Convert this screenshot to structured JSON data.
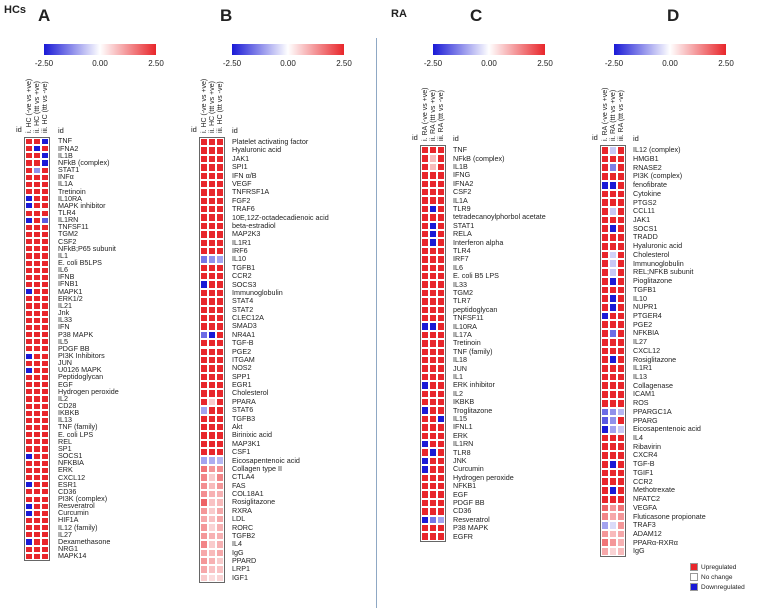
{
  "groups": {
    "hcs": "HCs",
    "ra": "RA"
  },
  "legend": {
    "up": "Upregulated",
    "nc": "No change",
    "down": "Downregulated"
  },
  "colors": {
    "up": "#e8262b",
    "down": "#1a1ad6",
    "nc": "#ffffff"
  },
  "chart_data": [
    {
      "type": "heatmap",
      "panel": "A",
      "colorbar": {
        "min": -2.5,
        "mid": 0.0,
        "max": 2.5,
        "min_label": "-2.50",
        "mid_label": "0.00",
        "max_label": "2.50"
      },
      "columns": [
        "i. HC (-ve vs +ve)",
        "ii. HC (ttt vs +ve)",
        "iii. HC (ttt vs -ve)"
      ],
      "id_label": "id",
      "rows": [
        "TNF",
        "IFNA2",
        "IL1B",
        "NFkB (complex)",
        "STAT1",
        "INFα",
        "IL1A",
        "Tretinoin",
        "IL10RA",
        "MAPK inhibitor",
        "TLR4",
        "IL1RN",
        "TNFSF11",
        "TGM2",
        "CSF2",
        "NFkB;P65 subunit",
        "IL1",
        "E. coli B5LPS",
        "IL6",
        "IFNB",
        "IFNB1",
        "MAPK1",
        "ERK1/2",
        "IL21",
        "Jnk",
        "IL33",
        "IFN",
        "P38 MAPK",
        "IL5",
        "PDGF BB",
        "PI3K Inhibitors",
        "JUN",
        "U0126 MAPK",
        "Peptidoglycan",
        "EGF",
        "Hydrogen peroxide",
        "IL2",
        "CD28",
        "IKBKB",
        "IL13",
        "TNF (family)",
        "E. coli LPS",
        "REL",
        "SP1",
        "SOCS1",
        "NFKBIA",
        "ERK",
        "CXCL12",
        "ESR1",
        "CD36",
        "PI3K (complex)",
        "Resveratrol",
        "Curcumin",
        "HIF1A",
        "IL12 (family)",
        "IL27",
        "Dexamethasone",
        "NRG1",
        "MAPK14"
      ],
      "values": [
        [
          2.5,
          2.5,
          -2.5
        ],
        [
          2.5,
          -2.5,
          2.5
        ],
        [
          2.5,
          2.5,
          -2.5
        ],
        [
          2.5,
          2.5,
          -2.5
        ],
        [
          2.5,
          -1.2,
          2.5
        ],
        [
          2.5,
          2.5,
          2.5
        ],
        [
          2.5,
          2.5,
          2.5
        ],
        [
          2.5,
          2.5,
          2.5
        ],
        [
          -2.5,
          2.5,
          2.5
        ],
        [
          -2.5,
          2.5,
          2.5
        ],
        [
          2.5,
          2.5,
          2.5
        ],
        [
          -2.5,
          2.5,
          -1.8
        ],
        [
          2.5,
          2.5,
          2.5
        ],
        [
          2.5,
          2.5,
          2.5
        ],
        [
          2.5,
          2.5,
          2.5
        ],
        [
          2.5,
          2.5,
          2.5
        ],
        [
          2.5,
          2.5,
          2.5
        ],
        [
          2.5,
          2.5,
          2.5
        ],
        [
          2.5,
          2.5,
          2.5
        ],
        [
          2.5,
          2.5,
          2.5
        ],
        [
          2.5,
          2.5,
          2.5
        ],
        [
          -2.5,
          2.5,
          2.5
        ],
        [
          2.5,
          2.5,
          2.5
        ],
        [
          2.5,
          2.5,
          2.5
        ],
        [
          2.5,
          2.5,
          2.5
        ],
        [
          2.5,
          2.5,
          2.5
        ],
        [
          2.5,
          2.5,
          2.5
        ],
        [
          2.5,
          2.5,
          2.5
        ],
        [
          2.5,
          2.5,
          2.5
        ],
        [
          2.5,
          2.5,
          2.5
        ],
        [
          -2.5,
          2.5,
          2.5
        ],
        [
          2.5,
          2.5,
          2.5
        ],
        [
          -2.5,
          2.5,
          2.5
        ],
        [
          2.5,
          2.5,
          2.5
        ],
        [
          2.5,
          2.5,
          2.5
        ],
        [
          2.5,
          2.5,
          2.5
        ],
        [
          2.5,
          2.5,
          2.5
        ],
        [
          2.5,
          2.5,
          2.5
        ],
        [
          2.5,
          2.5,
          2.5
        ],
        [
          2.5,
          2.5,
          2.5
        ],
        [
          2.5,
          2.5,
          2.5
        ],
        [
          2.5,
          2.5,
          2.5
        ],
        [
          2.5,
          2.5,
          2.5
        ],
        [
          2.5,
          2.5,
          2.5
        ],
        [
          -2.5,
          2.5,
          2.5
        ],
        [
          2.5,
          2.5,
          2.5
        ],
        [
          2.5,
          2.5,
          2.5
        ],
        [
          2.5,
          2.5,
          2.5
        ],
        [
          -2.5,
          2.5,
          2.5
        ],
        [
          2.5,
          2.5,
          2.5
        ],
        [
          2.5,
          2.5,
          2.5
        ],
        [
          -2.5,
          2.5,
          2.5
        ],
        [
          -2.5,
          2.5,
          2.5
        ],
        [
          2.5,
          2.5,
          2.5
        ],
        [
          2.5,
          2.5,
          2.5
        ],
        [
          2.5,
          2.5,
          2.5
        ],
        [
          -2.5,
          2.5,
          2.5
        ],
        [
          2.5,
          2.5,
          2.5
        ],
        [
          2.5,
          2.5,
          2.5
        ]
      ]
    },
    {
      "type": "heatmap",
      "panel": "B",
      "colorbar": {
        "min": -2.5,
        "mid": 0.0,
        "max": 2.5,
        "min_label": "-2.50",
        "mid_label": "0.00",
        "max_label": "2.50"
      },
      "columns": [
        "i. HC (-ve vs +ve)",
        "ii. HC (ttt vs +ve)",
        "iii. HC (ttt vs -ve)"
      ],
      "id_label": "id",
      "rows": [
        "Platelet activating factor",
        "Hyaluronic acid",
        "JAK1",
        "SPI1",
        "IFN α/B",
        "VEGF",
        "TNFRSF1A",
        "FGF2",
        "TRAF6",
        "10E,12Z-octadecadienoic acid",
        "beta-estradiol",
        "MAP2K3",
        "IL1R1",
        "IRF6",
        "IL10",
        "TGFB1",
        "CCR2",
        "SOCS3",
        "Immunoglobulin",
        "STAT4",
        "STAT2",
        "CLEC12A",
        "SMAD3",
        "NR4A1",
        "TGF-B",
        "PGE2",
        "ITGAM",
        "NOS2",
        "SPP1",
        "EGR1",
        "Cholesterol",
        "PPARA",
        "STAT6",
        "TGFB3",
        "Akt",
        "Birinixic acid",
        "MAP3K1",
        "CSF1",
        "Eicosapentenoic acid",
        "Collagen type II",
        "CTLA4",
        "FAS",
        "COL18A1",
        "Rosiglitazone",
        "RXRA",
        "LDL",
        "RORC",
        "TGFB2",
        "IL4",
        "IgG",
        "PPARD",
        "LRP1",
        "IGF1"
      ],
      "values": [
        [
          2.5,
          2.5,
          2.5
        ],
        [
          2.5,
          2.5,
          2.5
        ],
        [
          2.5,
          2.5,
          2.5
        ],
        [
          2.5,
          2.5,
          2.5
        ],
        [
          2.5,
          2.5,
          2.5
        ],
        [
          2.5,
          2.5,
          2.5
        ],
        [
          2.5,
          2.5,
          2.5
        ],
        [
          2.5,
          2.5,
          2.5
        ],
        [
          2.5,
          2.5,
          2.5
        ],
        [
          2.5,
          2.5,
          2.5
        ],
        [
          2.5,
          2.5,
          2.5
        ],
        [
          2.5,
          2.5,
          2.5
        ],
        [
          2.5,
          2.5,
          2.5
        ],
        [
          2.5,
          2.5,
          2.5
        ],
        [
          -1.5,
          -1.2,
          -1.0
        ],
        [
          2.5,
          2.5,
          2.5
        ],
        [
          2.5,
          2.5,
          2.5
        ],
        [
          -2.5,
          2.5,
          2.5
        ],
        [
          2.5,
          2.5,
          2.5
        ],
        [
          2.5,
          2.5,
          2.5
        ],
        [
          2.5,
          2.5,
          2.5
        ],
        [
          2.5,
          2.5,
          2.5
        ],
        [
          2.5,
          2.5,
          2.5
        ],
        [
          -1.6,
          -2.5,
          2.5
        ],
        [
          2.5,
          2.5,
          2.5
        ],
        [
          2.5,
          2.5,
          2.5
        ],
        [
          2.5,
          2.5,
          2.5
        ],
        [
          2.5,
          2.5,
          2.5
        ],
        [
          2.5,
          2.5,
          2.5
        ],
        [
          2.5,
          2.5,
          2.5
        ],
        [
          2.5,
          2.5,
          2.5
        ],
        [
          2.5,
          0.6,
          2.5
        ],
        [
          -1.0,
          2.5,
          2.5
        ],
        [
          2.5,
          2.5,
          2.5
        ],
        [
          2.5,
          2.5,
          2.5
        ],
        [
          2.5,
          2.5,
          2.5
        ],
        [
          2.5,
          2.5,
          2.5
        ],
        [
          2.5,
          2.5,
          2.5
        ],
        [
          -1.0,
          -0.9,
          -0.8
        ],
        [
          1.6,
          1.2,
          1.3
        ],
        [
          1.4,
          0.6,
          1.4
        ],
        [
          1.3,
          0.8,
          1.2
        ],
        [
          1.3,
          0.9,
          0.9
        ],
        [
          1.8,
          0.7,
          0.8
        ],
        [
          1.2,
          0.6,
          1.0
        ],
        [
          1.0,
          0.7,
          1.0
        ],
        [
          1.2,
          0.5,
          0.9
        ],
        [
          1.2,
          0.9,
          0.9
        ],
        [
          1.4,
          0.6,
          0.9
        ],
        [
          1.0,
          0.8,
          1.0
        ],
        [
          1.2,
          0.9,
          0.6
        ],
        [
          1.0,
          0.7,
          0.7
        ],
        [
          0.6,
          0.4,
          0.5
        ]
      ]
    },
    {
      "type": "heatmap",
      "panel": "C",
      "colorbar": {
        "min": -2.5,
        "mid": 0.0,
        "max": 2.5,
        "min_label": "-2.50",
        "mid_label": "0.00",
        "max_label": "2.50"
      },
      "columns": [
        "i. RA (-ve vs +ve)",
        "ii. RA (ttt vs +ve)",
        "iii. RA (ttt vs -ve)"
      ],
      "id_label": "id",
      "rows": [
        "TNF",
        "NFkB (complex)",
        "IL1B",
        "IFNG",
        "IFNA2",
        "CSF2",
        "IL1A",
        "TLR9",
        "tetradecanoylphorbol acetate",
        "STAT1",
        "RELA",
        "Interferon alpha",
        "TLR4",
        "IRF7",
        "IL6",
        "E. coli B5 LPS",
        "IL33",
        "TGM2",
        "TLR7",
        "peptidoglycan",
        "TNFSF11",
        "IL10RA",
        "IL17A",
        "Tretinoin",
        "TNF (family)",
        "IL18",
        "JUN",
        "IL1",
        "ERK inhibitor",
        "IL2",
        "IKBKB",
        "Troglitazone",
        "IL15",
        "IFNL1",
        "ERK",
        "IL1RN",
        "TLR8",
        "JNK",
        "Curcumin",
        "Hydrogen peroxide",
        "NFKB1",
        "EGF",
        "PDGF BB",
        "CD36",
        "Resveratrol",
        "P38 MAPK",
        "EGFR"
      ],
      "values": [
        [
          2.5,
          2.5,
          2.5
        ],
        [
          2.5,
          0.8,
          2.5
        ],
        [
          2.5,
          0.8,
          2.5
        ],
        [
          2.5,
          2.5,
          2.5
        ],
        [
          2.5,
          2.5,
          2.5
        ],
        [
          2.5,
          2.5,
          2.5
        ],
        [
          2.5,
          2.5,
          2.5
        ],
        [
          2.5,
          -2.5,
          2.5
        ],
        [
          2.5,
          2.5,
          2.5
        ],
        [
          2.5,
          -2.5,
          2.5
        ],
        [
          2.5,
          -2.5,
          2.5
        ],
        [
          2.5,
          -2.5,
          2.5
        ],
        [
          2.5,
          2.5,
          2.5
        ],
        [
          2.5,
          2.5,
          2.5
        ],
        [
          2.5,
          2.5,
          2.5
        ],
        [
          2.5,
          2.5,
          2.5
        ],
        [
          2.5,
          2.5,
          2.5
        ],
        [
          2.5,
          2.5,
          2.5
        ],
        [
          2.5,
          2.5,
          2.5
        ],
        [
          2.5,
          2.5,
          2.5
        ],
        [
          2.5,
          2.5,
          2.5
        ],
        [
          -2.5,
          -2.5,
          2.5
        ],
        [
          2.5,
          2.5,
          2.5
        ],
        [
          2.5,
          2.5,
          2.5
        ],
        [
          2.5,
          2.5,
          2.5
        ],
        [
          2.5,
          2.5,
          2.5
        ],
        [
          2.5,
          2.5,
          2.5
        ],
        [
          2.5,
          2.5,
          2.5
        ],
        [
          -2.5,
          2.5,
          2.5
        ],
        [
          2.5,
          2.5,
          2.5
        ],
        [
          2.5,
          2.5,
          2.5
        ],
        [
          -2.5,
          2.5,
          2.5
        ],
        [
          2.5,
          2.5,
          -2.5
        ],
        [
          2.5,
          2.5,
          2.5
        ],
        [
          2.5,
          2.5,
          2.5
        ],
        [
          -2.5,
          2.5,
          2.5
        ],
        [
          2.5,
          -2.5,
          2.5
        ],
        [
          -2.5,
          2.5,
          2.5
        ],
        [
          -2.5,
          2.5,
          2.5
        ],
        [
          2.5,
          2.5,
          2.5
        ],
        [
          2.5,
          2.5,
          2.5
        ],
        [
          2.5,
          2.5,
          2.5
        ],
        [
          2.5,
          2.5,
          2.5
        ],
        [
          2.5,
          2.5,
          2.5
        ],
        [
          -2.5,
          -1.5,
          -1.0
        ],
        [
          2.5,
          2.5,
          2.5
        ],
        [
          2.5,
          2.5,
          2.5
        ]
      ]
    },
    {
      "type": "heatmap",
      "panel": "D",
      "colorbar": {
        "min": -2.5,
        "mid": 0.0,
        "max": 2.5,
        "min_label": "-2.50",
        "mid_label": "0.00",
        "max_label": "2.50"
      },
      "columns": [
        "i. RA (-ve vs +ve)",
        "ii. RA (ttt vs +ve)",
        "iii. RA (ttt vs -ve)"
      ],
      "id_label": "id",
      "rows": [
        "IL12 (complex)",
        "HMGB1",
        "RNASE2",
        "PI3K (complex)",
        "fenofibrate",
        "Cytokine",
        "PTGS2",
        "CCL11",
        "JAK1",
        "SOCS1",
        "TRADD",
        "Hyaluronic acid",
        "Cholesterol",
        "Immunoglobulin",
        "REL;NFKB subunit",
        "Pioglitazone",
        "TGFB1",
        "IL10",
        "NUPR1",
        "PTGER4",
        "PGE2",
        "NFKBIA",
        "IL27",
        "CXCL12",
        "Rosiglitazone",
        "IL1R1",
        "IL13",
        "Collagenase",
        "ICAM1",
        "ROS",
        "PPARGC1A",
        "PPARG",
        "Eicosapentenoic acid",
        "IL4",
        "Ribavirin",
        "CXCR4",
        "TGF-B",
        "TGIF1",
        "CCR2",
        "Methotrexate",
        "NFATC2",
        "VEGFA",
        "Fluticasone propionate",
        "TRAF3",
        "ADAM12",
        "PPARα-RXRα",
        "IgG"
      ],
      "values": [
        [
          2.5,
          -0.6,
          2.5
        ],
        [
          2.5,
          2.5,
          2.5
        ],
        [
          2.5,
          -1.4,
          2.5
        ],
        [
          2.5,
          2.5,
          2.5
        ],
        [
          -2.5,
          -2.5,
          2.5
        ],
        [
          2.5,
          2.5,
          2.5
        ],
        [
          2.5,
          2.5,
          2.5
        ],
        [
          2.5,
          -0.6,
          2.5
        ],
        [
          2.5,
          2.5,
          2.5
        ],
        [
          2.5,
          -2.5,
          2.5
        ],
        [
          2.5,
          2.5,
          2.5
        ],
        [
          2.5,
          2.5,
          2.5
        ],
        [
          2.5,
          -0.5,
          2.5
        ],
        [
          2.5,
          -0.6,
          2.5
        ],
        [
          2.5,
          -0.6,
          2.5
        ],
        [
          2.5,
          -2.5,
          2.5
        ],
        [
          2.5,
          2.5,
          2.5
        ],
        [
          2.5,
          -2.5,
          2.5
        ],
        [
          2.5,
          -2.5,
          2.5
        ],
        [
          -2.5,
          2.5,
          2.5
        ],
        [
          2.5,
          2.5,
          2.5
        ],
        [
          2.5,
          -1.6,
          2.5
        ],
        [
          2.5,
          2.5,
          2.5
        ],
        [
          2.5,
          2.5,
          2.5
        ],
        [
          2.5,
          -2.5,
          2.5
        ],
        [
          2.5,
          2.5,
          2.5
        ],
        [
          2.5,
          2.5,
          2.5
        ],
        [
          2.5,
          2.5,
          2.5
        ],
        [
          2.5,
          2.5,
          2.5
        ],
        [
          2.5,
          2.5,
          2.5
        ],
        [
          -1.6,
          -1.2,
          -0.8
        ],
        [
          -1.8,
          -1.2,
          2.5
        ],
        [
          -2.5,
          -1.0,
          -0.6
        ],
        [
          2.5,
          2.5,
          2.5
        ],
        [
          2.5,
          2.5,
          2.5
        ],
        [
          2.5,
          2.5,
          2.5
        ],
        [
          2.5,
          -2.5,
          2.5
        ],
        [
          2.5,
          2.5,
          2.5
        ],
        [
          2.5,
          2.5,
          2.5
        ],
        [
          2.5,
          -2.5,
          2.5
        ],
        [
          2.5,
          2.5,
          2.5
        ],
        [
          1.8,
          1.2,
          1.6
        ],
        [
          1.4,
          1.0,
          1.2
        ],
        [
          -1.0,
          -0.4,
          1.2
        ],
        [
          1.2,
          0.8,
          1.0
        ],
        [
          1.6,
          1.2,
          0.9
        ],
        [
          1.0,
          0.5,
          0.8
        ]
      ]
    }
  ]
}
